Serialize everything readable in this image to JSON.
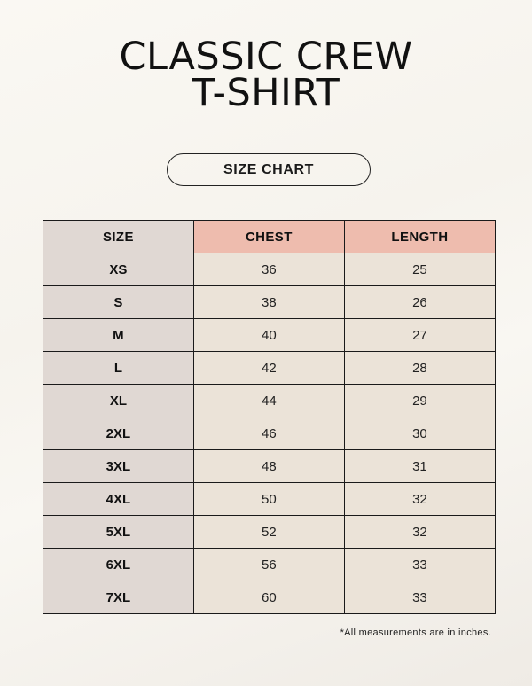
{
  "title": {
    "line1": "CLASSIC CREW",
    "line2": "T-SHIRT"
  },
  "badge": "SIZE CHART",
  "colors": {
    "size_column": "#e0d8d3",
    "header_accent": "#eebcae",
    "cell": "#ebe3d8"
  },
  "table": {
    "headers": [
      "SIZE",
      "CHEST",
      "LENGTH"
    ],
    "rows": [
      [
        "XS",
        "36",
        "25"
      ],
      [
        "S",
        "38",
        "26"
      ],
      [
        "M",
        "40",
        "27"
      ],
      [
        "L",
        "42",
        "28"
      ],
      [
        "XL",
        "44",
        "29"
      ],
      [
        "2XL",
        "46",
        "30"
      ],
      [
        "3XL",
        "48",
        "31"
      ],
      [
        "4XL",
        "50",
        "32"
      ],
      [
        "5XL",
        "52",
        "32"
      ],
      [
        "6XL",
        "56",
        "33"
      ],
      [
        "7XL",
        "60",
        "33"
      ]
    ]
  },
  "footnote": "*All measurements are in inches."
}
